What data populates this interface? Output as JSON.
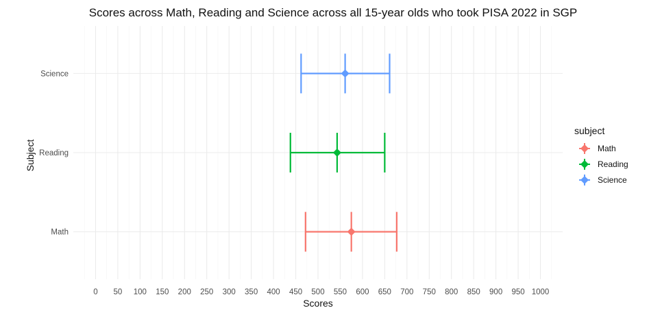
{
  "chart_data": {
    "type": "errorbar",
    "title": "Scores across Math, Reading and Science across all 15-year olds who took PISA 2022 in SGP",
    "xlabel": "Scores",
    "ylabel": "Subject",
    "xlim": [
      -50,
      1050
    ],
    "x_ticks": [
      0,
      50,
      100,
      150,
      200,
      250,
      300,
      350,
      400,
      450,
      500,
      550,
      600,
      650,
      700,
      750,
      800,
      850,
      900,
      950,
      1000
    ],
    "categories": [
      "Math",
      "Reading",
      "Science"
    ],
    "series": [
      {
        "name": "Math",
        "mean": 575,
        "low": 472,
        "high": 677,
        "color": "#F8766D"
      },
      {
        "name": "Reading",
        "mean": 543,
        "low": 438,
        "high": 650,
        "color": "#00BA38"
      },
      {
        "name": "Science",
        "mean": 561,
        "low": 462,
        "high": 661,
        "color": "#619CFF"
      }
    ],
    "legend": {
      "title": "subject",
      "position": "right"
    },
    "grid": true
  }
}
